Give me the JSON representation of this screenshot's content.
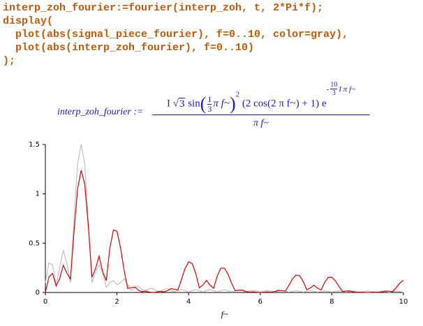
{
  "code": [
    "interp_zoh_fourier:=fourier(interp_zoh, t, 2*Pi*f);",
    "display(",
    "  plot(abs(signal_piece_fourier), f=0..10, color=gray),",
    "  plot(abs(interp_zoh_fourier), f=0..10)",
    ");"
  ],
  "formula": {
    "lhs": "interp_zoh_fourier :=",
    "imag": "I",
    "root": "√",
    "radicand": "3",
    "sin": "sin",
    "paren_open": "(",
    "frac_num": "1",
    "frac_den": "3",
    "arg": "π f~",
    "paren_close": ")",
    "power": "2",
    "factor": "(2 cos(2 π f~) + 1)",
    "e": "e",
    "exp_sign": "-",
    "exp_num": "10",
    "exp_den": "3",
    "exp_tail": "I π f~",
    "denominator": "π f~"
  },
  "chart_data": {
    "type": "line",
    "x_label": "f~",
    "x": [
      0,
      0.1,
      0.2,
      0.3,
      0.4,
      0.5,
      0.6,
      0.7,
      0.8,
      0.9,
      1,
      1.1,
      1.2,
      1.3,
      1.4,
      1.5,
      1.6,
      1.7,
      1.8,
      1.9,
      2,
      2.1,
      2.2,
      2.3,
      2.4,
      2.5,
      2.6,
      2.7,
      2.8,
      2.9,
      3,
      3.1,
      3.2,
      3.3,
      3.4,
      3.5,
      3.6,
      3.7,
      3.8,
      3.9,
      4,
      4.1,
      4.2,
      4.3,
      4.4,
      4.5,
      4.6,
      4.7,
      4.8,
      4.9,
      5,
      5.1,
      5.2,
      5.3,
      5.4,
      5.5,
      5.6,
      5.7,
      5.8,
      5.9,
      6,
      6.1,
      6.2,
      6.3,
      6.4,
      6.5,
      6.6,
      6.7,
      6.8,
      6.9,
      7,
      7.1,
      7.2,
      7.3,
      7.4,
      7.5,
      7.6,
      7.7,
      7.8,
      7.9,
      8,
      8.1,
      8.2,
      8.3,
      8.4,
      8.5,
      8.6,
      8.7,
      8.8,
      8.9,
      9,
      9.1,
      9.2,
      9.3,
      9.4,
      9.5,
      9.6,
      9.7,
      9.8,
      9.9,
      10
    ],
    "series": [
      {
        "color": "#c0c0c0",
        "values": [
          0.1,
          0.3,
          0.28,
          0.08,
          0.25,
          0.43,
          0.3,
          0.1,
          0.75,
          1.3,
          1.5,
          1.3,
          0.7,
          0.1,
          0.2,
          0.28,
          0.2,
          0.05,
          0.1,
          0.12,
          0.08,
          0.1,
          0.14,
          0.08,
          0.02,
          0.05,
          0.06,
          0.03,
          0.02,
          0.04,
          0.04,
          0.02,
          0.01,
          0.03,
          0.04,
          0.02,
          0.01,
          0.02,
          0.03,
          0.02,
          0.005,
          0.02,
          0.03,
          0.02,
          0.005,
          0.02,
          0.028,
          0.018,
          0.005,
          0.018,
          0.026,
          0.017,
          0.005,
          0.017,
          0.024,
          0.016,
          0.005,
          0.016,
          0.022,
          0.015,
          0.005,
          0.015,
          0.021,
          0.014,
          0.004,
          0.014,
          0.02,
          0.013,
          0.004,
          0.013,
          0.019,
          0.012,
          0.004,
          0.012,
          0.018,
          0.012,
          0.004,
          0.012,
          0.017,
          0.011,
          0.004,
          0.011,
          0.016,
          0.011,
          0.004,
          0.011,
          0.015,
          0.01,
          0.004,
          0.01,
          0.015,
          0.01,
          0.003,
          0.01,
          0.014,
          0.01,
          0.003,
          0.01,
          0.014,
          0.009,
          0.003
        ]
      },
      {
        "color": "#e00000",
        "values": [
          0,
          0.158,
          0.193,
          0.067,
          0.141,
          0.276,
          0.196,
          0.135,
          0.616,
          1.05,
          1.24,
          1.095,
          0.672,
          0.155,
          0.241,
          0.368,
          0.211,
          0.119,
          0.448,
          0.634,
          0.62,
          0.45,
          0.224,
          0.041,
          0.049,
          0.055,
          0.022,
          0.008,
          0.014,
          0.005,
          0,
          0.005,
          0.012,
          0.006,
          0.017,
          0.039,
          0.033,
          0.026,
          0.13,
          0.242,
          0.31,
          0.294,
          0.192,
          0.047,
          0.077,
          0.123,
          0.073,
          0.043,
          0.168,
          0.246,
          0.248,
          0.185,
          0.095,
          0.018,
          0.022,
          0.025,
          0.01,
          0.004,
          0.007,
          0.003,
          0,
          0.003,
          0.006,
          0.003,
          0.009,
          0.021,
          0.018,
          0.014,
          0.072,
          0.137,
          0.177,
          0.17,
          0.112,
          0.028,
          0.046,
          0.074,
          0.044,
          0.026,
          0.103,
          0.153,
          0.155,
          0.117,
          0.06,
          0.011,
          0.014,
          0.016,
          0.007,
          0.002,
          0.004,
          0.002,
          0,
          0.002,
          0.004,
          0.002,
          0.006,
          0.015,
          0.012,
          0.01,
          0.05,
          0.095,
          0.124
        ]
      }
    ],
    "xlim": [
      0,
      10
    ],
    "ylim": [
      0,
      1.5
    ],
    "xticks": [
      0,
      2,
      4,
      6,
      8,
      10
    ],
    "yticks": [
      0,
      0.5,
      1,
      1.5
    ]
  }
}
